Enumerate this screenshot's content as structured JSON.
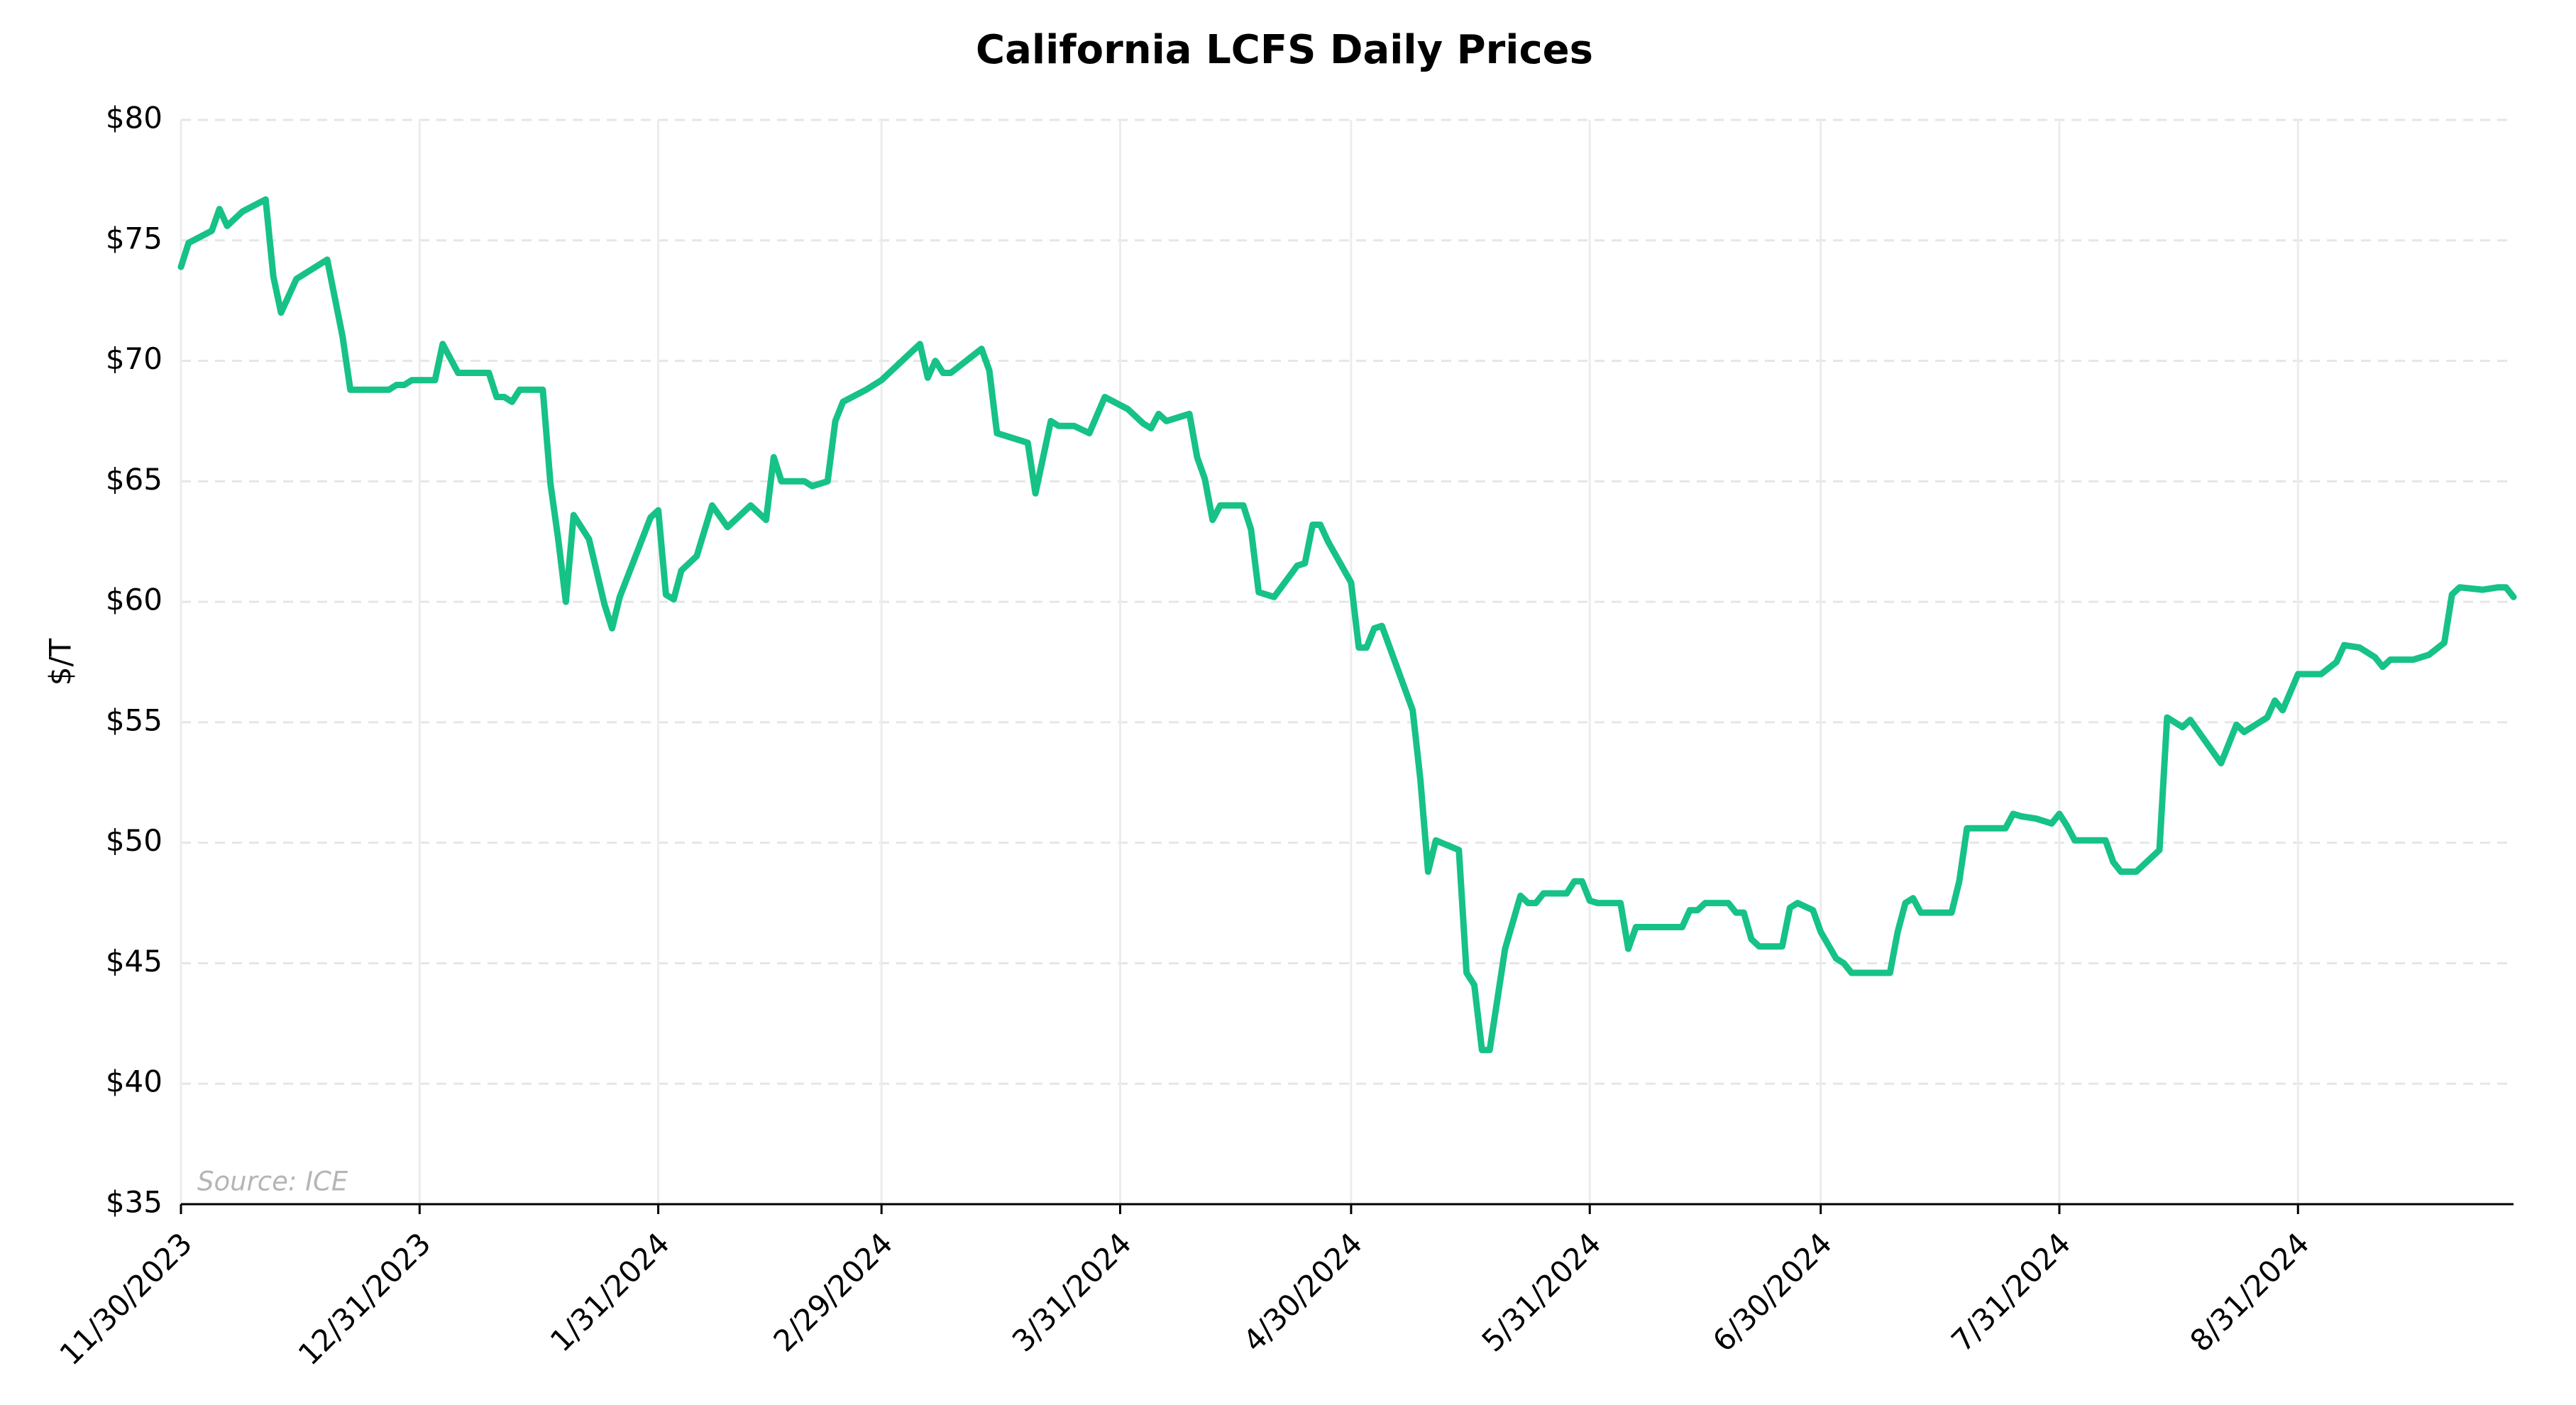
{
  "chart_data": {
    "type": "line",
    "title": "California LCFS Daily Prices",
    "y_label": "$/T",
    "annotation": "Source: ICE",
    "xlim": [
      "2023-11-30",
      "2024-09-28"
    ],
    "xticks": [
      {
        "value": "2023-11-30",
        "label": "11/30/2023"
      },
      {
        "value": "2023-12-31",
        "label": "12/31/2023"
      },
      {
        "value": "2024-01-31",
        "label": "1/31/2024"
      },
      {
        "value": "2024-02-29",
        "label": "2/29/2024"
      },
      {
        "value": "2024-03-31",
        "label": "3/31/2024"
      },
      {
        "value": "2024-04-30",
        "label": "4/30/2024"
      },
      {
        "value": "2024-05-31",
        "label": "5/31/2024"
      },
      {
        "value": "2024-06-30",
        "label": "6/30/2024"
      },
      {
        "value": "2024-07-31",
        "label": "7/31/2024"
      },
      {
        "value": "2024-08-31",
        "label": "8/31/2024"
      }
    ],
    "ylim": [
      35,
      80
    ],
    "yticks": [
      {
        "value": 35,
        "label": "$35"
      },
      {
        "value": 40,
        "label": "$40"
      },
      {
        "value": 45,
        "label": "$45"
      },
      {
        "value": 50,
        "label": "$50"
      },
      {
        "value": 55,
        "label": "$55"
      },
      {
        "value": 60,
        "label": "$60"
      },
      {
        "value": 65,
        "label": "$65"
      },
      {
        "value": 70,
        "label": "$70"
      },
      {
        "value": 75,
        "label": "$75"
      },
      {
        "value": 80,
        "label": "$80"
      }
    ],
    "grid": true,
    "x": [
      "2023-11-30",
      "2023-12-01",
      "2023-12-04",
      "2023-12-05",
      "2023-12-06",
      "2023-12-08",
      "2023-12-11",
      "2023-12-12",
      "2023-12-13",
      "2023-12-15",
      "2023-12-19",
      "2023-12-21",
      "2023-12-22",
      "2023-12-27",
      "2023-12-28",
      "2023-12-29",
      "2023-12-30",
      "2024-01-02",
      "2024-01-03",
      "2024-01-05",
      "2024-01-09",
      "2024-01-10",
      "2024-01-11",
      "2024-01-12",
      "2024-01-13",
      "2024-01-16",
      "2024-01-17",
      "2024-01-18",
      "2024-01-19",
      "2024-01-20",
      "2024-01-22",
      "2024-01-24",
      "2024-01-25",
      "2024-01-26",
      "2024-01-30",
      "2024-01-31",
      "2024-02-01",
      "2024-02-02",
      "2024-02-03",
      "2024-02-05",
      "2024-02-07",
      "2024-02-09",
      "2024-02-12",
      "2024-02-14",
      "2024-02-15",
      "2024-02-16",
      "2024-02-19",
      "2024-02-20",
      "2024-02-22",
      "2024-02-23",
      "2024-02-24",
      "2024-02-27",
      "2024-02-28",
      "2024-02-29",
      "2024-03-02",
      "2024-03-05",
      "2024-03-06",
      "2024-03-07",
      "2024-03-08",
      "2024-03-09",
      "2024-03-13",
      "2024-03-14",
      "2024-03-15",
      "2024-03-18",
      "2024-03-19",
      "2024-03-20",
      "2024-03-22",
      "2024-03-23",
      "2024-03-25",
      "2024-03-27",
      "2024-03-29",
      "2024-04-01",
      "2024-04-03",
      "2024-04-04",
      "2024-04-05",
      "2024-04-06",
      "2024-04-09",
      "2024-04-10",
      "2024-04-11",
      "2024-04-12",
      "2024-04-13",
      "2024-04-16",
      "2024-04-17",
      "2024-04-18",
      "2024-04-20",
      "2024-04-23",
      "2024-04-24",
      "2024-04-25",
      "2024-04-26",
      "2024-04-27",
      "2024-04-30",
      "2024-05-01",
      "2024-05-02",
      "2024-05-03",
      "2024-05-04",
      "2024-05-08",
      "2024-05-09",
      "2024-05-10",
      "2024-05-11",
      "2024-05-14",
      "2024-05-15",
      "2024-05-16",
      "2024-05-17",
      "2024-05-18",
      "2024-05-20",
      "2024-05-22",
      "2024-05-23",
      "2024-05-24",
      "2024-05-25",
      "2024-05-28",
      "2024-05-29",
      "2024-05-30",
      "2024-05-31",
      "2024-06-01",
      "2024-06-04",
      "2024-06-05",
      "2024-06-06",
      "2024-06-12",
      "2024-06-13",
      "2024-06-14",
      "2024-06-15",
      "2024-06-18",
      "2024-06-19",
      "2024-06-20",
      "2024-06-21",
      "2024-06-22",
      "2024-06-25",
      "2024-06-26",
      "2024-06-27",
      "2024-06-29",
      "2024-06-30",
      "2024-07-02",
      "2024-07-03",
      "2024-07-04",
      "2024-07-09",
      "2024-07-10",
      "2024-07-11",
      "2024-07-12",
      "2024-07-13",
      "2024-07-17",
      "2024-07-18",
      "2024-07-19",
      "2024-07-24",
      "2024-07-25",
      "2024-07-26",
      "2024-07-28",
      "2024-07-30",
      "2024-07-31",
      "2024-08-01",
      "2024-08-02",
      "2024-08-06",
      "2024-08-07",
      "2024-08-08",
      "2024-08-10",
      "2024-08-13",
      "2024-08-14",
      "2024-08-16",
      "2024-08-17",
      "2024-08-21",
      "2024-08-23",
      "2024-08-24",
      "2024-08-27",
      "2024-08-28",
      "2024-08-29",
      "2024-08-31",
      "2024-09-03",
      "2024-09-05",
      "2024-09-06",
      "2024-09-08",
      "2024-09-10",
      "2024-09-11",
      "2024-09-12",
      "2024-09-15",
      "2024-09-17",
      "2024-09-19",
      "2024-09-20",
      "2024-09-21",
      "2024-09-24",
      "2024-09-26",
      "2024-09-27",
      "2024-09-28"
    ],
    "series": [
      {
        "name": "LCFS",
        "color": "#16c286",
        "values": [
          73.9,
          74.9,
          75.4,
          76.3,
          75.6,
          76.2,
          76.7,
          73.5,
          72.0,
          73.4,
          74.2,
          71.0,
          68.8,
          68.8,
          69.0,
          69.0,
          69.2,
          69.2,
          70.7,
          69.5,
          69.5,
          68.5,
          68.5,
          68.3,
          68.8,
          68.8,
          64.9,
          62.6,
          60.0,
          63.6,
          62.6,
          59.9,
          58.9,
          60.2,
          63.5,
          63.8,
          60.3,
          60.1,
          61.3,
          61.9,
          64.0,
          63.1,
          64.0,
          63.4,
          66.0,
          65.0,
          65.0,
          64.8,
          65.0,
          67.5,
          68.3,
          68.8,
          69.0,
          69.2,
          69.8,
          70.7,
          69.3,
          70.0,
          69.5,
          69.5,
          70.5,
          69.6,
          67.0,
          66.7,
          66.6,
          64.5,
          67.5,
          67.3,
          67.3,
          67.0,
          68.5,
          68.0,
          67.4,
          67.2,
          67.8,
          67.5,
          67.8,
          66.0,
          65.1,
          63.4,
          64.0,
          64.0,
          63.0,
          60.4,
          60.2,
          61.5,
          61.6,
          63.2,
          63.2,
          62.5,
          60.8,
          58.1,
          58.1,
          58.9,
          59.0,
          55.5,
          52.6,
          48.8,
          50.1,
          49.7,
          44.6,
          44.1,
          41.4,
          41.4,
          45.6,
          47.8,
          47.5,
          47.5,
          47.9,
          47.9,
          48.4,
          48.4,
          47.6,
          47.5,
          47.5,
          45.6,
          46.5,
          46.5,
          47.2,
          47.2,
          47.5,
          47.5,
          47.1,
          47.1,
          46.0,
          45.7,
          45.7,
          47.3,
          47.5,
          47.2,
          46.3,
          45.2,
          45.0,
          44.6,
          44.6,
          46.3,
          47.5,
          47.7,
          47.1,
          47.1,
          48.4,
          50.6,
          50.6,
          51.2,
          51.1,
          51.0,
          50.8,
          51.2,
          50.7,
          50.1,
          50.1,
          49.2,
          48.8,
          48.8,
          49.7,
          55.2,
          54.8,
          55.1,
          53.3,
          54.9,
          54.6,
          55.2,
          55.9,
          55.5,
          57.0,
          57.0,
          57.5,
          58.2,
          58.1,
          57.7,
          57.3,
          57.6,
          57.6,
          57.8,
          58.3,
          60.3,
          60.6,
          60.5,
          60.6,
          60.6,
          60.2
        ]
      }
    ]
  }
}
